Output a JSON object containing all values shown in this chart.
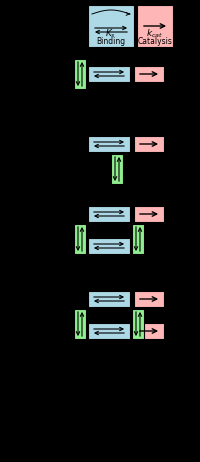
{
  "bg_color": "#000000",
  "blue_box_color": "#add8e6",
  "pink_box_color": "#ffb6b6",
  "green_box_color": "#90ee90",
  "fig_width": 2.0,
  "fig_height": 4.62,
  "legend_ks": "$K_s$",
  "legend_kcat": "$k_{cat}$",
  "legend_binding": "Binding",
  "legend_catalysis": "Catalysis"
}
